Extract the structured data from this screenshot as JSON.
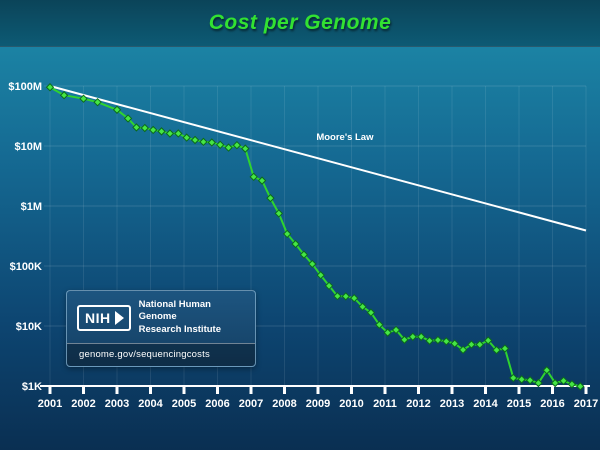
{
  "header": {
    "title": "Cost per Genome"
  },
  "logo_box": {
    "nih": "NIH",
    "org_line1": "National Human Genome",
    "org_line2": "Research Institute",
    "url": "genome.gov/sequencingcosts"
  },
  "colors": {
    "title_green": "#32e132",
    "series_green": "#2fd32f",
    "marker_fill": "#45e645",
    "marker_stroke": "#0b6b1b",
    "moores_law_white": "#ffffff",
    "axis_white": "#ffffff"
  },
  "chart_data": {
    "type": "line",
    "title": "Cost per Genome",
    "y_scale": "log",
    "ylim": [
      1000,
      100000000
    ],
    "y_ticks": [
      "$100M",
      "$10M",
      "$1M",
      "$100K",
      "$10K",
      "$1K"
    ],
    "x_ticks": [
      "2001",
      "2002",
      "2003",
      "2004",
      "2005",
      "2006",
      "2007",
      "2008",
      "2009",
      "2010",
      "2011",
      "2012",
      "2013",
      "2014",
      "2015",
      "2016",
      "2017"
    ],
    "x_domain": [
      2001.75,
      2017.75
    ],
    "grid": true,
    "legend": "none",
    "series": [
      {
        "name": "Cost per Genome",
        "color": "#2fd32f",
        "marker": "diamond",
        "marker_fill": "#45e645",
        "marker_stroke": "#0b6b1b",
        "points": [
          [
            2001.75,
            95263072
          ],
          [
            2002.17,
            70175437
          ],
          [
            2002.75,
            61448422
          ],
          [
            2003.17,
            53751684
          ],
          [
            2003.75,
            40157554
          ],
          [
            2004.08,
            28780376
          ],
          [
            2004.33,
            20442576
          ],
          [
            2004.58,
            19934346
          ],
          [
            2004.83,
            18519312
          ],
          [
            2005.08,
            17534970
          ],
          [
            2005.33,
            16159699
          ],
          [
            2005.58,
            16180224
          ],
          [
            2005.83,
            13801124
          ],
          [
            2006.08,
            12585659
          ],
          [
            2006.33,
            11732535
          ],
          [
            2006.58,
            11455315
          ],
          [
            2006.83,
            10474556
          ],
          [
            2007.08,
            9408739
          ],
          [
            2007.33,
            10314926
          ],
          [
            2007.58,
            9047003
          ],
          [
            2007.83,
            3063820
          ],
          [
            2008.08,
            2646137
          ],
          [
            2008.33,
            1352982
          ],
          [
            2008.58,
            752080
          ],
          [
            2008.83,
            342502
          ],
          [
            2009.08,
            232735
          ],
          [
            2009.33,
            154714
          ],
          [
            2009.58,
            108065
          ],
          [
            2009.83,
            70333
          ],
          [
            2010.08,
            46774
          ],
          [
            2010.33,
            31512
          ],
          [
            2010.58,
            31125
          ],
          [
            2010.83,
            29092
          ],
          [
            2011.08,
            20963
          ],
          [
            2011.33,
            16712
          ],
          [
            2011.58,
            10497
          ],
          [
            2011.83,
            7743
          ],
          [
            2012.08,
            8594
          ],
          [
            2012.33,
            5901
          ],
          [
            2012.58,
            6618
          ],
          [
            2012.83,
            6618
          ],
          [
            2013.08,
            5671
          ],
          [
            2013.33,
            5826
          ],
          [
            2013.58,
            5550
          ],
          [
            2013.83,
            5096
          ],
          [
            2014.08,
            4008
          ],
          [
            2014.33,
            4920
          ],
          [
            2014.58,
            4905
          ],
          [
            2014.83,
            5731
          ],
          [
            2015.08,
            3970
          ],
          [
            2015.33,
            4211
          ],
          [
            2015.58,
            1363
          ],
          [
            2015.83,
            1289
          ],
          [
            2016.08,
            1245
          ],
          [
            2016.33,
            1122
          ],
          [
            2016.58,
            1832
          ],
          [
            2016.83,
            1121
          ],
          [
            2017.08,
            1221
          ],
          [
            2017.33,
            1071
          ],
          [
            2017.58,
            985
          ]
        ]
      }
    ],
    "reference_lines": [
      {
        "name": "Moore's Law",
        "color": "#ffffff",
        "points": [
          [
            2001.75,
            100000000
          ],
          [
            2017.75,
            390625
          ]
        ]
      }
    ],
    "annotations": [
      {
        "text": "Moore's Law",
        "x": 2009.7,
        "y": 12500000,
        "color": "#ffffff"
      }
    ]
  }
}
